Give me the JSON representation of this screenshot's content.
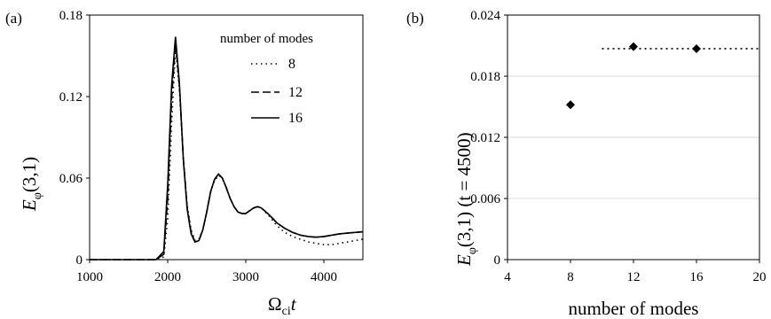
{
  "chart_data": [
    {
      "type": "line",
      "panel_label": "(a)",
      "xlabel_main": "Ω",
      "xlabel_sub": "ci",
      "xlabel_var": "t",
      "ylabel_main": "E",
      "ylabel_sub": "φ",
      "ylabel_args": "(3,1)",
      "xlim": [
        1000,
        4500
      ],
      "ylim": [
        0,
        0.18
      ],
      "xticks": [
        "1000",
        "2000",
        "3000",
        "4000"
      ],
      "xtick_values": [
        1000,
        2000,
        3000,
        4000
      ],
      "yticks": [
        "0",
        "0.06",
        "0.12",
        "0.18"
      ],
      "ytick_values": [
        0,
        0.06,
        0.12,
        0.18
      ],
      "legend_title": "number of modes",
      "legend_placement": "top-right",
      "series": [
        {
          "name": "8",
          "style": "dotted",
          "x": [
            1000,
            1850,
            1950,
            2000,
            2050,
            2100,
            2150,
            2200,
            2250,
            2300,
            2350,
            2400,
            2450,
            2500,
            2550,
            2600,
            2650,
            2700,
            2750,
            2800,
            2850,
            2900,
            2950,
            3000,
            3100,
            3150,
            3200,
            3300,
            3400,
            3500,
            3600,
            3700,
            3800,
            3900,
            4000,
            4100,
            4200,
            4300,
            4400,
            4500
          ],
          "y": [
            0,
            0,
            0.002,
            0.03,
            0.1,
            0.156,
            0.125,
            0.075,
            0.04,
            0.022,
            0.014,
            0.015,
            0.022,
            0.035,
            0.05,
            0.058,
            0.062,
            0.06,
            0.053,
            0.045,
            0.039,
            0.035,
            0.034,
            0.034,
            0.038,
            0.039,
            0.038,
            0.032,
            0.025,
            0.02,
            0.017,
            0.015,
            0.013,
            0.012,
            0.011,
            0.011,
            0.012,
            0.013,
            0.014,
            0.015
          ]
        },
        {
          "name": "12",
          "style": "dashed",
          "x": [
            1000,
            1850,
            1950,
            2000,
            2050,
            2100,
            2150,
            2200,
            2250,
            2300,
            2350,
            2400,
            2450,
            2500,
            2550,
            2600,
            2650,
            2700,
            2750,
            2800,
            2850,
            2900,
            2950,
            3000,
            3100,
            3150,
            3200,
            3300,
            3400,
            3500,
            3600,
            3700,
            3800,
            3900,
            4000,
            4100,
            4200,
            4300,
            4400,
            4500
          ],
          "y": [
            0,
            0,
            0.004,
            0.045,
            0.118,
            0.16,
            0.128,
            0.075,
            0.038,
            0.02,
            0.013,
            0.014,
            0.022,
            0.035,
            0.05,
            0.059,
            0.063,
            0.06,
            0.053,
            0.045,
            0.039,
            0.035,
            0.034,
            0.034,
            0.038,
            0.039,
            0.038,
            0.033,
            0.027,
            0.023,
            0.02,
            0.018,
            0.017,
            0.0165,
            0.017,
            0.018,
            0.019,
            0.0195,
            0.02,
            0.0205
          ]
        },
        {
          "name": "16",
          "style": "solid",
          "x": [
            1000,
            1850,
            1950,
            2000,
            2050,
            2100,
            2150,
            2200,
            2250,
            2300,
            2350,
            2400,
            2450,
            2500,
            2550,
            2600,
            2650,
            2700,
            2750,
            2800,
            2850,
            2900,
            2950,
            3000,
            3100,
            3150,
            3200,
            3300,
            3400,
            3500,
            3600,
            3700,
            3800,
            3900,
            4000,
            4100,
            4200,
            4300,
            4400,
            4500
          ],
          "y": [
            0,
            0,
            0.006,
            0.055,
            0.128,
            0.164,
            0.13,
            0.074,
            0.037,
            0.019,
            0.013,
            0.014,
            0.022,
            0.035,
            0.05,
            0.059,
            0.063,
            0.06,
            0.053,
            0.045,
            0.039,
            0.035,
            0.034,
            0.034,
            0.038,
            0.039,
            0.038,
            0.033,
            0.027,
            0.023,
            0.02,
            0.018,
            0.017,
            0.0165,
            0.017,
            0.018,
            0.019,
            0.0195,
            0.02,
            0.0205
          ]
        }
      ]
    },
    {
      "type": "scatter",
      "panel_label": "(b)",
      "xlabel": "number of modes",
      "ylabel_main": "E",
      "ylabel_sub": "φ",
      "ylabel_args": "(3,1) (t = 4500)",
      "xlim": [
        4,
        20
      ],
      "ylim": [
        0,
        0.024
      ],
      "xticks": [
        "4",
        "8",
        "12",
        "16",
        "20"
      ],
      "xtick_values": [
        4,
        8,
        12,
        16,
        20
      ],
      "yticks": [
        "0",
        "0.006",
        "0.012",
        "0.018",
        "0.024"
      ],
      "ytick_values": [
        0,
        0.006,
        0.012,
        0.018,
        0.024
      ],
      "points": {
        "x": [
          8,
          12,
          16
        ],
        "y": [
          0.0152,
          0.0209,
          0.0207
        ]
      },
      "reference_line": {
        "style": "dotted",
        "y": 0.0207,
        "x_from": 10,
        "x_to": 20
      }
    }
  ]
}
